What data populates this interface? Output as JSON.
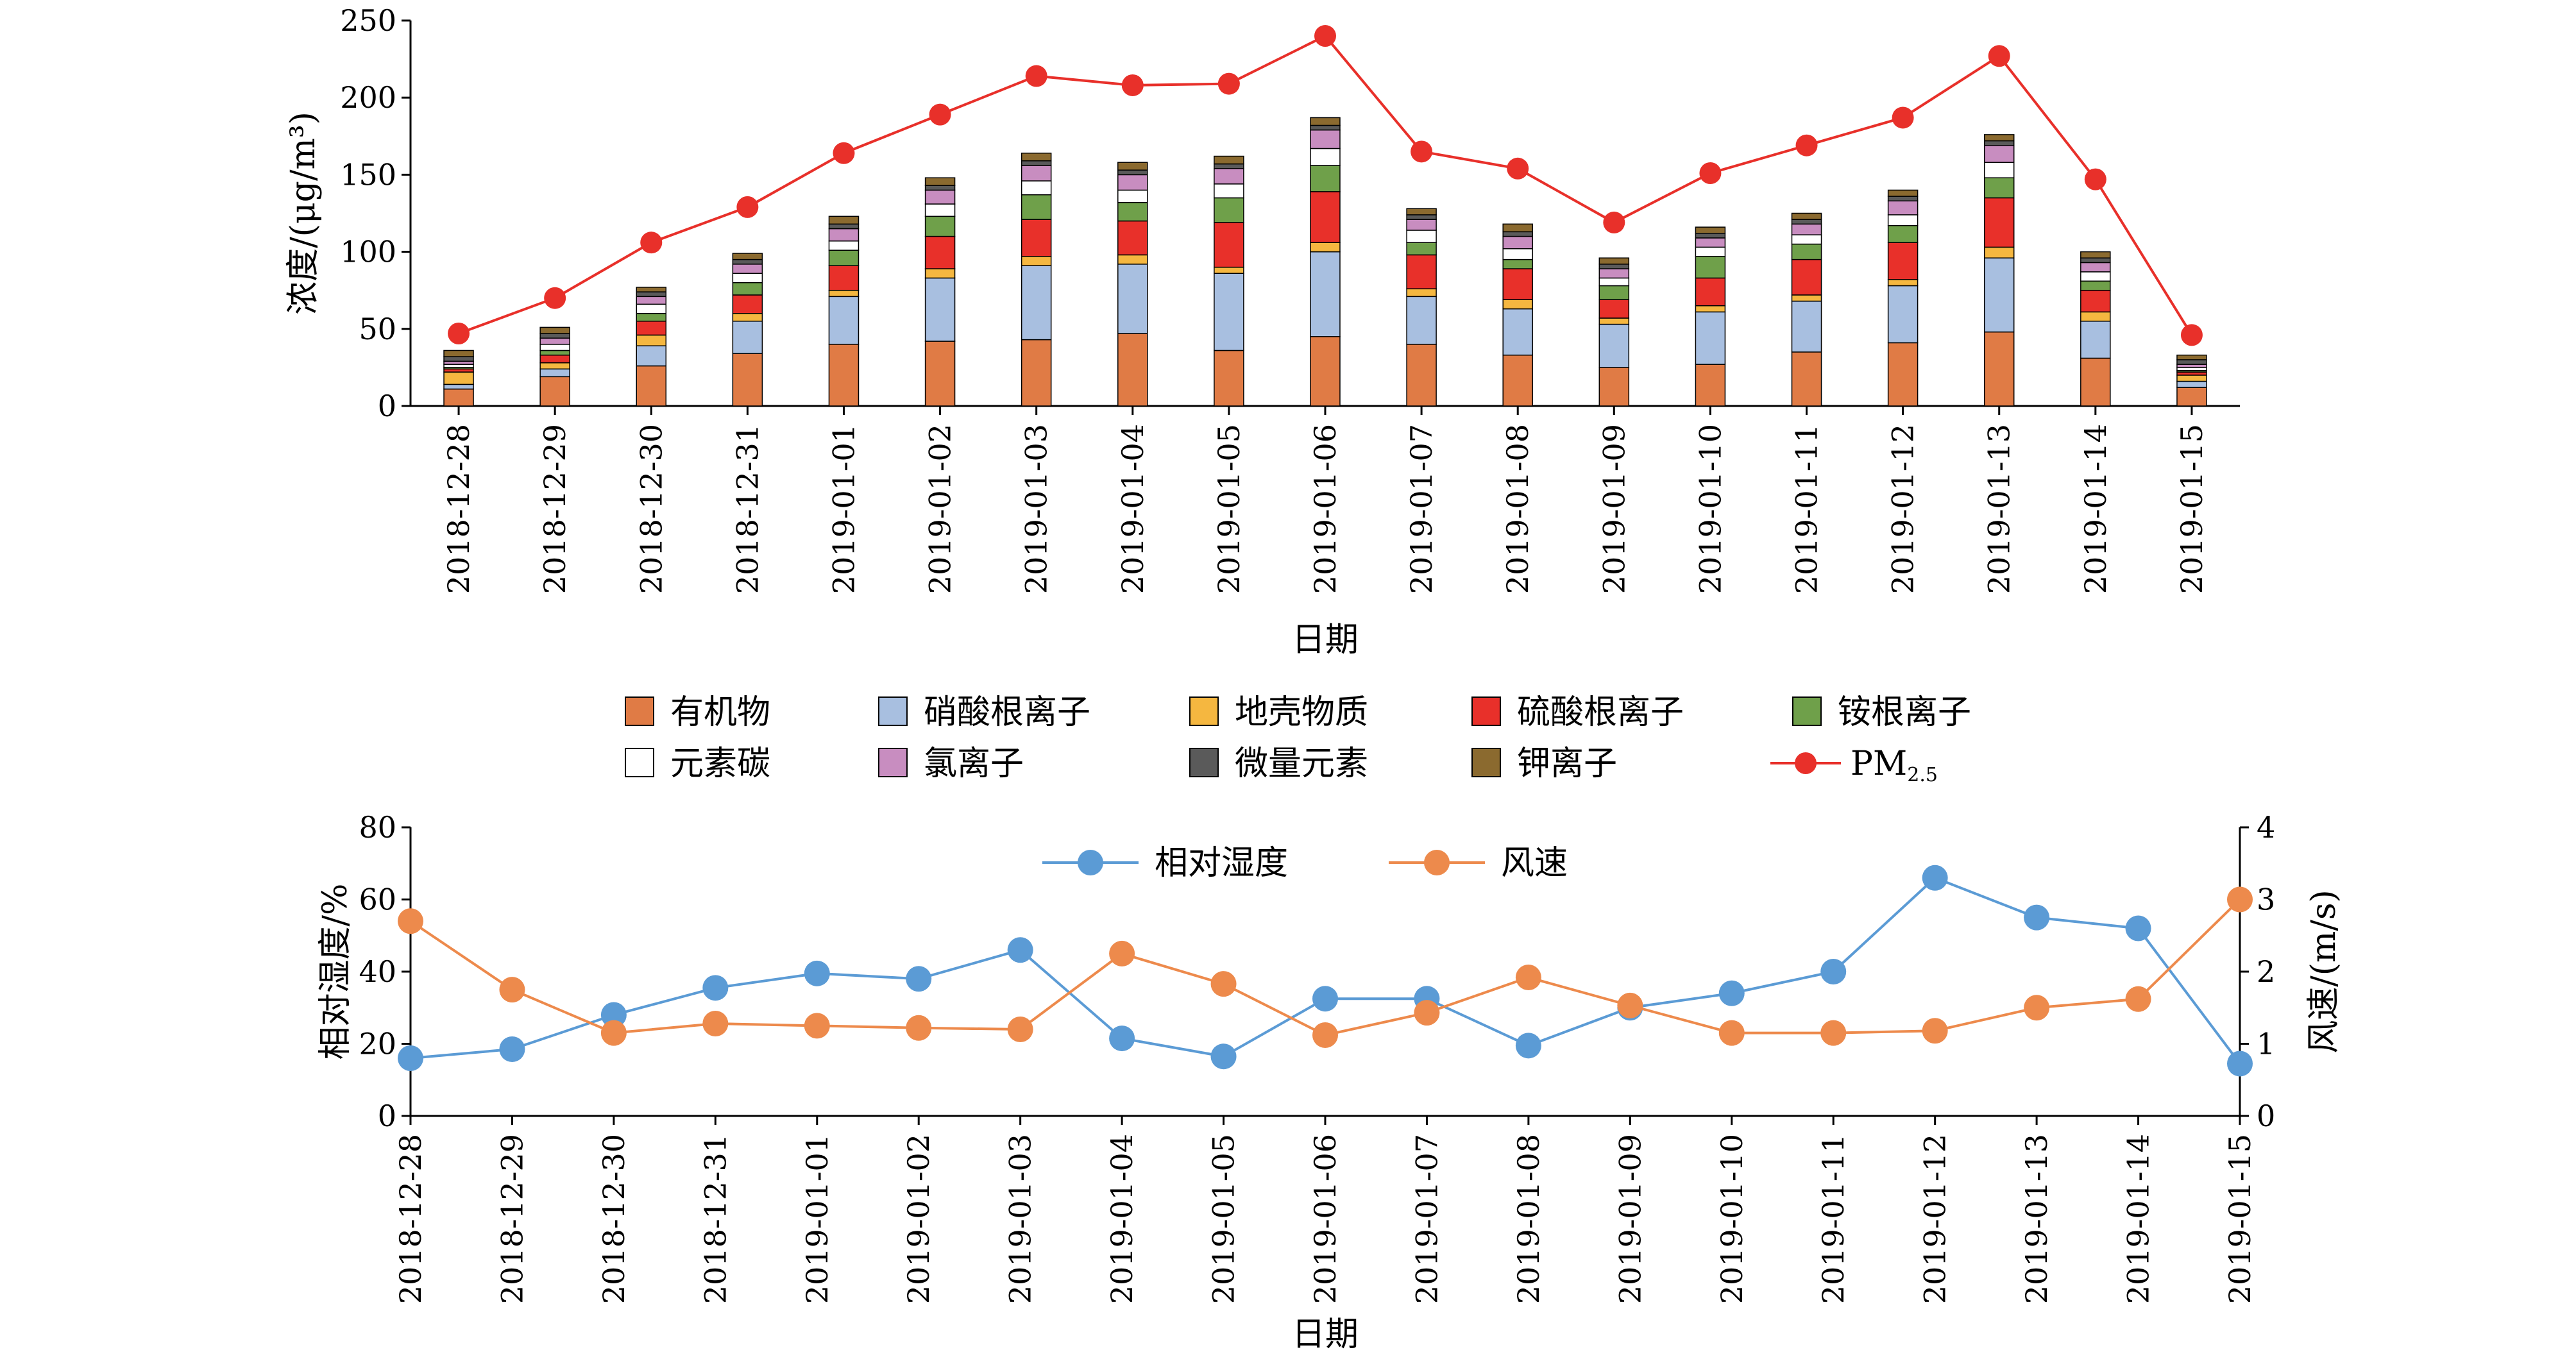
{
  "chart_data": [
    {
      "type": "bar",
      "stacked": true,
      "categories": [
        "2018-12-28",
        "2018-12-29",
        "2018-12-30",
        "2018-12-31",
        "2019-01-01",
        "2019-01-02",
        "2019-01-03",
        "2019-01-04",
        "2019-01-05",
        "2019-01-06",
        "2019-01-07",
        "2019-01-08",
        "2019-01-09",
        "2019-01-10",
        "2019-01-11",
        "2019-01-12",
        "2019-01-13",
        "2019-01-14",
        "2019-01-15"
      ],
      "xlabel": "日期",
      "ylabel": "浓度/(μg/m³)",
      "ylim": [
        0,
        250
      ],
      "yticks": [
        0,
        50,
        100,
        150,
        200,
        250
      ],
      "series": [
        {
          "name": "有机物",
          "color": "#E07B45",
          "values": [
            11,
            19,
            26,
            34,
            40,
            42,
            43,
            47,
            36,
            45,
            40,
            33,
            25,
            27,
            35,
            41,
            48,
            31,
            12
          ]
        },
        {
          "name": "硝酸根离子",
          "color": "#A8BFE0",
          "values": [
            3,
            5,
            13,
            21,
            31,
            41,
            48,
            45,
            50,
            55,
            31,
            30,
            28,
            34,
            33,
            37,
            48,
            24,
            4
          ]
        },
        {
          "name": "地壳物质",
          "color": "#F5B740",
          "values": [
            8,
            4,
            7,
            5,
            4,
            6,
            6,
            6,
            4,
            6,
            5,
            6,
            4,
            4,
            4,
            4,
            7,
            6,
            4
          ]
        },
        {
          "name": "硫酸根离子",
          "color": "#E8302A",
          "values": [
            2,
            5,
            9,
            12,
            16,
            21,
            24,
            22,
            29,
            33,
            22,
            20,
            12,
            18,
            23,
            24,
            32,
            14,
            2
          ]
        },
        {
          "name": "铵根离子",
          "color": "#6FA04A",
          "values": [
            1,
            3,
            5,
            8,
            10,
            13,
            16,
            12,
            16,
            17,
            8,
            6,
            9,
            14,
            10,
            11,
            13,
            6,
            1
          ]
        },
        {
          "name": "元素碳",
          "color": "#FFFFFF",
          "values": [
            2,
            4,
            6,
            6,
            6,
            8,
            9,
            8,
            9,
            11,
            8,
            7,
            5,
            6,
            6,
            7,
            10,
            6,
            2
          ]
        },
        {
          "name": "氯离子",
          "color": "#C88DC0",
          "values": [
            2,
            4,
            5,
            6,
            8,
            9,
            10,
            10,
            10,
            12,
            7,
            8,
            6,
            6,
            7,
            9,
            11,
            6,
            2
          ]
        },
        {
          "name": "微量元素",
          "color": "#5A5A5A",
          "values": [
            3,
            3,
            3,
            3,
            3,
            3,
            3,
            3,
            3,
            3,
            3,
            3,
            3,
            3,
            3,
            3,
            3,
            3,
            3
          ]
        },
        {
          "name": "钾离子",
          "color": "#8B6A2F",
          "values": [
            4,
            4,
            3,
            4,
            5,
            5,
            5,
            5,
            5,
            5,
            4,
            5,
            4,
            4,
            4,
            4,
            4,
            4,
            3
          ]
        }
      ],
      "line_series": {
        "name": "PM2.5",
        "color": "#E8302A",
        "values": [
          47,
          70,
          106,
          129,
          164,
          189,
          214,
          208,
          209,
          240,
          165,
          154,
          119,
          151,
          169,
          187,
          227,
          147,
          46
        ]
      },
      "legend_placement": "below"
    },
    {
      "type": "line",
      "categories": [
        "2018-12-28",
        "2018-12-29",
        "2018-12-30",
        "2018-12-31",
        "2019-01-01",
        "2019-01-02",
        "2019-01-03",
        "2019-01-04",
        "2019-01-05",
        "2019-01-06",
        "2019-01-07",
        "2019-01-08",
        "2019-01-09",
        "2019-01-10",
        "2019-01-11",
        "2019-01-12",
        "2019-01-13",
        "2019-01-14",
        "2019-01-15"
      ],
      "xlabel": "日期",
      "ylabel": "相对湿度/%",
      "y2label": "风速/(m/s)",
      "ylim": [
        0,
        80
      ],
      "y2lim": [
        0,
        4
      ],
      "yticks": [
        0,
        20,
        40,
        60,
        80
      ],
      "y2ticks": [
        0,
        1,
        2,
        3,
        4
      ],
      "series": [
        {
          "name": "相对湿度",
          "axis": "left",
          "color": "#5B9BD5",
          "values": [
            16,
            18.5,
            28,
            35.5,
            39.5,
            38,
            46,
            21.5,
            16.5,
            32.5,
            32.5,
            19.5,
            30,
            34,
            40,
            66,
            55,
            52,
            14.5
          ]
        },
        {
          "name": "风速",
          "axis": "right",
          "color": "#ED8A4C",
          "values": [
            2.7,
            1.75,
            1.15,
            1.28,
            1.25,
            1.22,
            1.2,
            2.25,
            1.83,
            1.12,
            1.43,
            1.92,
            1.53,
            1.15,
            1.15,
            1.18,
            1.5,
            1.62,
            3.0
          ]
        }
      ],
      "legend_placement": "top-center"
    }
  ],
  "pm_label": {
    "main": "PM",
    "sub": "2.5"
  }
}
